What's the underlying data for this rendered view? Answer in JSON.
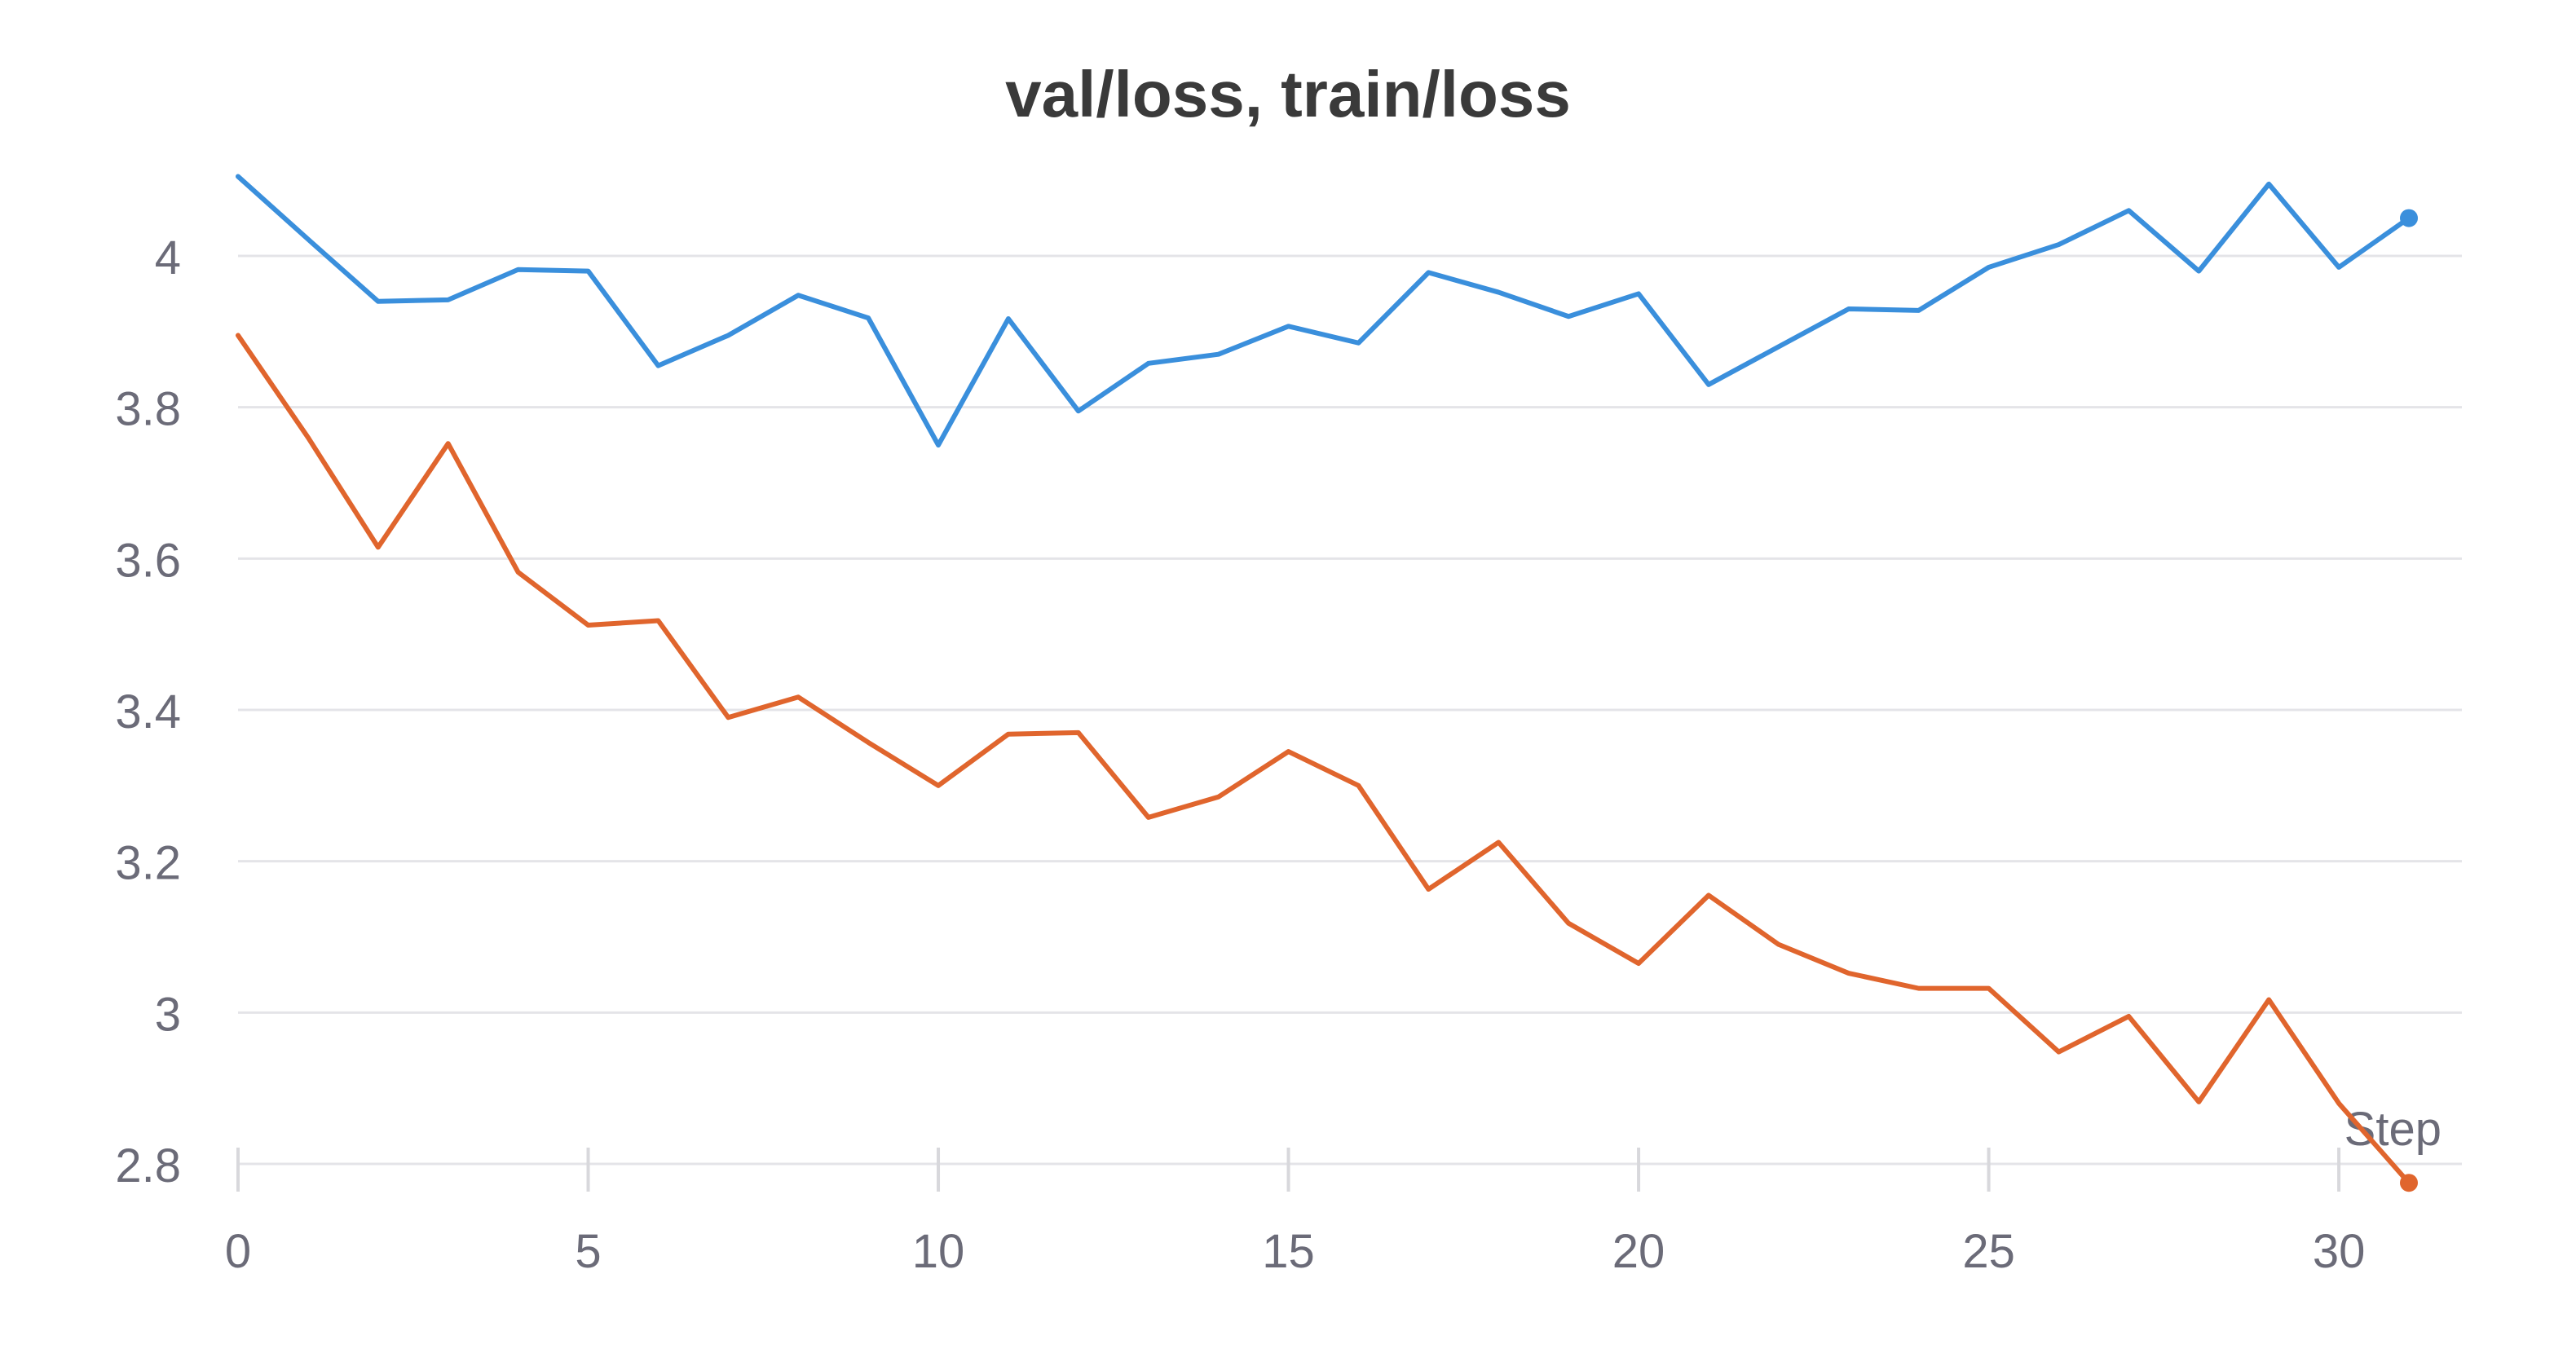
{
  "chart_data": {
    "type": "line",
    "title": "val/loss, train/loss",
    "xlabel": "Step",
    "ylabel": "",
    "xlim": [
      0,
      31
    ],
    "ylim": [
      2.8,
      4.12
    ],
    "xticks": [
      0,
      5,
      10,
      15,
      20,
      25,
      30
    ],
    "yticks": [
      2.8,
      3.0,
      3.2,
      3.4,
      3.6,
      3.8,
      4.0
    ],
    "ytick_labels": [
      "2.8",
      "3",
      "3.2",
      "3.4",
      "3.6",
      "3.8",
      "4"
    ],
    "xtick_labels": [
      "0",
      "5",
      "10",
      "15",
      "20",
      "25",
      "30"
    ],
    "grid": true,
    "series": [
      {
        "color": "#3a8fdc",
        "x": [
          0,
          1,
          2,
          3,
          4,
          5,
          6,
          7,
          8,
          9,
          10,
          11,
          12,
          13,
          14,
          15,
          16,
          17,
          18,
          19,
          20,
          21,
          22,
          23,
          24,
          25,
          26,
          27,
          28,
          29,
          30,
          31
        ],
        "values": [
          4.105,
          4.022,
          3.94,
          3.942,
          3.982,
          3.98,
          3.855,
          3.895,
          3.948,
          3.918,
          3.75,
          3.917,
          3.795,
          3.858,
          3.87,
          3.907,
          3.885,
          3.978,
          3.952,
          3.92,
          3.95,
          3.83,
          3.88,
          3.93,
          3.928,
          3.985,
          4.015,
          4.06,
          3.98,
          4.095,
          3.985,
          4.05
        ]
      },
      {
        "color": "#e0652d",
        "x": [
          0,
          1,
          2,
          3,
          4,
          5,
          6,
          7,
          8,
          9,
          10,
          11,
          12,
          13,
          14,
          15,
          16,
          17,
          18,
          19,
          20,
          21,
          22,
          23,
          24,
          25,
          26,
          27,
          28,
          29,
          30,
          31
        ],
        "values": [
          3.895,
          3.76,
          3.615,
          3.752,
          3.582,
          3.512,
          3.518,
          3.39,
          3.417,
          3.357,
          3.3,
          3.368,
          3.37,
          3.258,
          3.285,
          3.345,
          3.3,
          3.163,
          3.225,
          3.118,
          3.065,
          3.155,
          3.09,
          3.052,
          3.032,
          3.032,
          2.948,
          2.995,
          2.882,
          3.017,
          2.88,
          2.775
        ]
      }
    ]
  }
}
